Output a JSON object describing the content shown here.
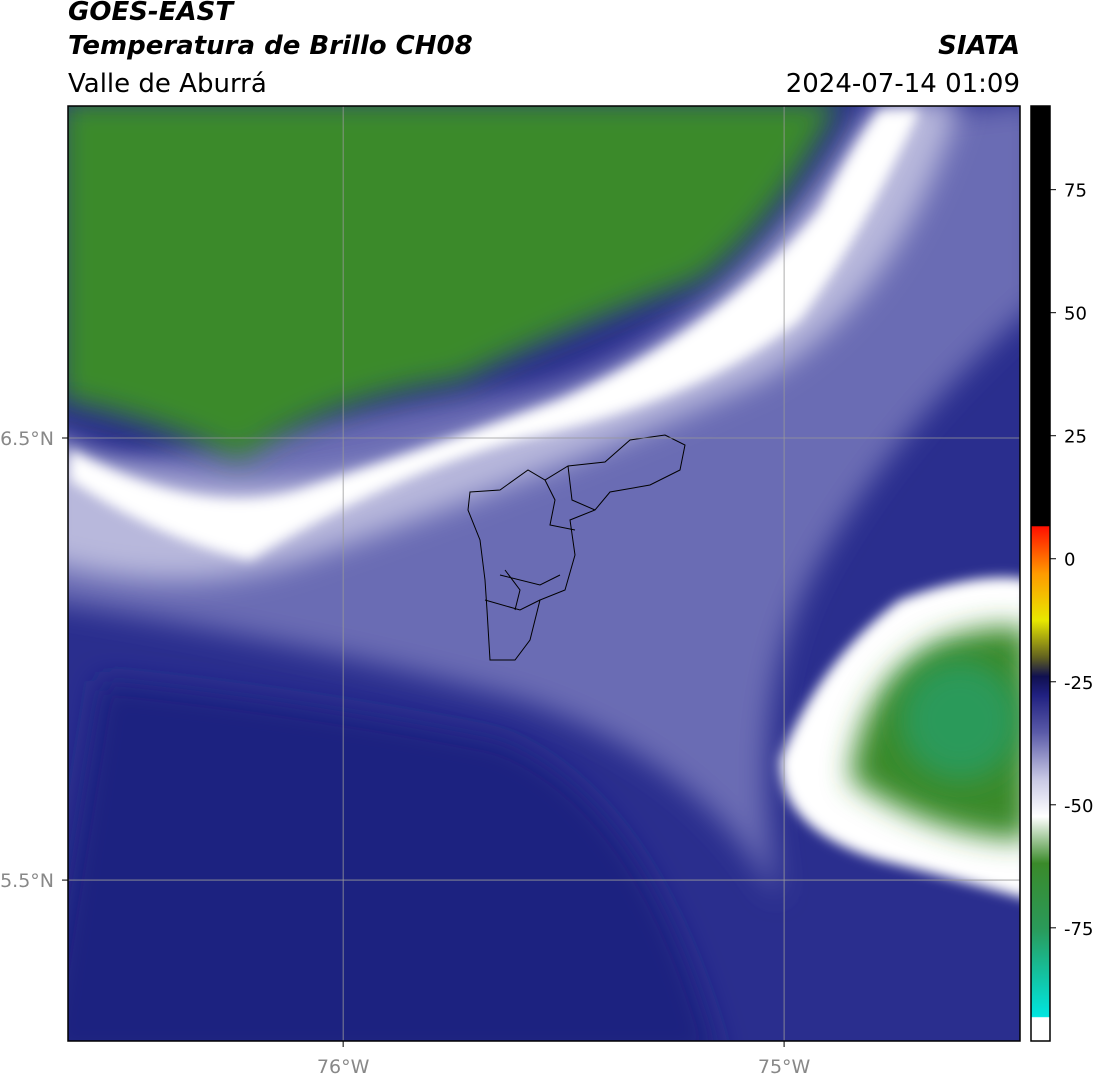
{
  "header": {
    "title": "GOES-EAST",
    "subtitle": "Temperatura de Brillo CH08",
    "region": "Valle de Aburrá",
    "source": "SIATA",
    "datetime": "2024-07-14 01:09"
  },
  "map": {
    "lat_lim": [
      5.136,
      7.251
    ],
    "lon_lim": [
      -76.624,
      -74.465
    ],
    "lat_ticks": [
      {
        "value": 6.5,
        "label": "6.5°N"
      },
      {
        "value": 5.5,
        "label": "5.5°N"
      }
    ],
    "lon_ticks": [
      {
        "value": -76,
        "label": "76°W"
      },
      {
        "value": -75,
        "label": "75°W"
      }
    ]
  },
  "colorbar": {
    "lim": [
      -98,
      92
    ],
    "ticks": [
      75,
      50,
      25,
      0,
      -25,
      -50,
      -75
    ]
  }
}
